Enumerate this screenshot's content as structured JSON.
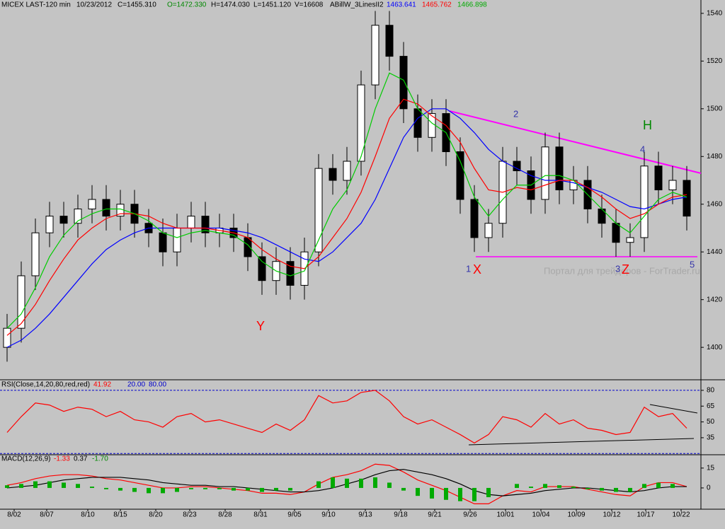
{
  "header": {
    "symbol": "MICEX LAST-120 min",
    "date": "10/23/2012",
    "close": "C=1455.310",
    "open": "O=1472.330",
    "high": "H=1474.030",
    "low": "L=1451.120",
    "volume": "V=16608",
    "indicator": "ABillW_3LinesII2",
    "line1": "1463.641",
    "line2": "1465.762",
    "line3": "1466.898"
  },
  "annotations": {
    "y": "Y",
    "p1": "1",
    "x": "X",
    "p2": "2",
    "p3": "3",
    "z": "Z",
    "p4": "4",
    "h": "H",
    "p5": "5",
    "watermark": "Портал для трейдеров - ForTrader.ru"
  },
  "chart_data": [
    {
      "type": "candlestick",
      "up_color": "#ffffff",
      "down_color": "#000000",
      "x": [
        0,
        1,
        2,
        3,
        4,
        5,
        6,
        7,
        8,
        9,
        10,
        11,
        12,
        13,
        14,
        15,
        16,
        17,
        18,
        19,
        20,
        21,
        22,
        23,
        24,
        25,
        26,
        27,
        28,
        29,
        30,
        31,
        32,
        33,
        34,
        35,
        36,
        37,
        38,
        39,
        40,
        41,
        42,
        43,
        44,
        45,
        46,
        47,
        48
      ],
      "open": [
        1400,
        1408,
        1430,
        1448,
        1455,
        1452,
        1458,
        1462,
        1455,
        1460,
        1452,
        1448,
        1440,
        1450,
        1455,
        1448,
        1450,
        1446,
        1438,
        1428,
        1436,
        1426,
        1440,
        1475,
        1470,
        1478,
        1510,
        1535,
        1522,
        1500,
        1488,
        1498,
        1482,
        1462,
        1446,
        1452,
        1478,
        1474,
        1462,
        1484,
        1466,
        1470,
        1458,
        1452,
        1444,
        1446,
        1476,
        1466,
        1470
      ],
      "high": [
        1414,
        1436,
        1454,
        1461,
        1461,
        1464,
        1468,
        1468,
        1466,
        1466,
        1458,
        1454,
        1456,
        1461,
        1461,
        1456,
        1456,
        1452,
        1444,
        1442,
        1442,
        1446,
        1481,
        1481,
        1484,
        1516,
        1541,
        1541,
        1528,
        1506,
        1504,
        1504,
        1488,
        1468,
        1458,
        1484,
        1484,
        1480,
        1490,
        1490,
        1476,
        1476,
        1464,
        1458,
        1452,
        1482,
        1482,
        1476,
        1476
      ],
      "low": [
        1394,
        1402,
        1424,
        1442,
        1446,
        1446,
        1452,
        1449,
        1449,
        1446,
        1442,
        1434,
        1434,
        1444,
        1442,
        1442,
        1440,
        1432,
        1422,
        1422,
        1420,
        1420,
        1434,
        1464,
        1464,
        1472,
        1504,
        1516,
        1494,
        1482,
        1482,
        1476,
        1456,
        1440,
        1440,
        1446,
        1468,
        1456,
        1456,
        1460,
        1460,
        1452,
        1446,
        1438,
        1438,
        1440,
        1460,
        1460,
        1449
      ],
      "close": [
        1408,
        1430,
        1448,
        1455,
        1452,
        1458,
        1462,
        1455,
        1460,
        1452,
        1448,
        1440,
        1450,
        1455,
        1448,
        1450,
        1446,
        1438,
        1428,
        1436,
        1426,
        1440,
        1475,
        1470,
        1478,
        1510,
        1535,
        1522,
        1500,
        1488,
        1498,
        1482,
        1462,
        1446,
        1452,
        1478,
        1474,
        1462,
        1484,
        1466,
        1470,
        1458,
        1452,
        1444,
        1446,
        1476,
        1466,
        1470,
        1455
      ],
      "series": [
        {
          "color": "#0000ff",
          "values": [
            1400,
            1403,
            1408,
            1414,
            1421,
            1428,
            1435,
            1441,
            1445,
            1448,
            1450,
            1450,
            1450,
            1450,
            1450,
            1450,
            1449,
            1448,
            1446,
            1443,
            1440,
            1437,
            1436,
            1440,
            1446,
            1452,
            1462,
            1475,
            1488,
            1496,
            1500,
            1500,
            1496,
            1490,
            1483,
            1478,
            1475,
            1472,
            1470,
            1470,
            1469,
            1467,
            1465,
            1462,
            1459,
            1458,
            1460,
            1462,
            1463
          ]
        },
        {
          "color": "#ff0000",
          "values": [
            1405,
            1410,
            1418,
            1428,
            1437,
            1445,
            1450,
            1454,
            1456,
            1456,
            1455,
            1452,
            1450,
            1450,
            1450,
            1449,
            1448,
            1446,
            1441,
            1437,
            1434,
            1433,
            1438,
            1446,
            1454,
            1465,
            1480,
            1496,
            1504,
            1502,
            1497,
            1493,
            1486,
            1475,
            1466,
            1465,
            1467,
            1466,
            1468,
            1470,
            1470,
            1467,
            1463,
            1458,
            1454,
            1456,
            1460,
            1463,
            1464
          ]
        },
        {
          "color": "#00cc00",
          "values": [
            1408,
            1414,
            1425,
            1438,
            1447,
            1453,
            1456,
            1458,
            1458,
            1456,
            1453,
            1448,
            1446,
            1448,
            1449,
            1448,
            1447,
            1443,
            1436,
            1432,
            1430,
            1432,
            1445,
            1458,
            1466,
            1480,
            1500,
            1515,
            1512,
            1500,
            1494,
            1490,
            1478,
            1463,
            1455,
            1462,
            1468,
            1468,
            1472,
            1472,
            1470,
            1464,
            1458,
            1452,
            1448,
            1455,
            1462,
            1465,
            1463
          ]
        }
      ],
      "xlim": [
        -0.5,
        49
      ],
      "ylim": [
        1387,
        1545
      ],
      "yticks": [
        1400,
        1420,
        1440,
        1460,
        1480,
        1500,
        1520,
        1540
      ]
    },
    {
      "type": "line",
      "title": "RSI(Close,14,20,80,red,red)",
      "last": "41.92",
      "levels": [
        {
          "value": 20,
          "label": "20.00"
        },
        {
          "value": 80,
          "label": "80.00"
        }
      ],
      "level_color": "#0000cc",
      "x": [
        0,
        1,
        2,
        3,
        4,
        5,
        6,
        7,
        8,
        9,
        10,
        11,
        12,
        13,
        14,
        15,
        16,
        17,
        18,
        19,
        20,
        21,
        22,
        23,
        24,
        25,
        26,
        27,
        28,
        29,
        30,
        31,
        32,
        33,
        34,
        35,
        36,
        37,
        38,
        39,
        40,
        41,
        42,
        43,
        44,
        45,
        46,
        47,
        48
      ],
      "series": [
        {
          "color": "#ff0000",
          "values": [
            40,
            55,
            68,
            66,
            60,
            64,
            62,
            55,
            60,
            52,
            50,
            45,
            55,
            58,
            50,
            52,
            48,
            44,
            40,
            48,
            42,
            52,
            75,
            68,
            70,
            78,
            80,
            70,
            55,
            48,
            52,
            45,
            38,
            30,
            38,
            55,
            52,
            45,
            58,
            48,
            52,
            44,
            42,
            38,
            40,
            64,
            55,
            58,
            44
          ]
        }
      ],
      "xlim": [
        -0.5,
        49
      ],
      "ylim": [
        19.5,
        88
      ],
      "yticks": [
        35,
        50,
        65,
        80
      ]
    },
    {
      "type": "line",
      "title": "MACD(12,26,9)",
      "labels": [
        "-1.33",
        "0.37",
        "-1.70"
      ],
      "x": [
        0,
        1,
        2,
        3,
        4,
        5,
        6,
        7,
        8,
        9,
        10,
        11,
        12,
        13,
        14,
        15,
        16,
        17,
        18,
        19,
        20,
        21,
        22,
        23,
        24,
        25,
        26,
        27,
        28,
        29,
        30,
        31,
        32,
        33,
        34,
        35,
        36,
        37,
        38,
        39,
        40,
        41,
        42,
        43,
        44,
        45,
        46,
        47,
        48
      ],
      "series": [
        {
          "color": "#ff0000",
          "values": [
            2,
            4,
            7,
            9,
            10,
            10,
            9,
            7,
            6,
            4,
            2,
            0,
            0,
            1,
            1,
            0,
            -1,
            -2,
            -4,
            -4,
            -5,
            -3,
            3,
            8,
            10,
            13,
            18,
            17,
            12,
            6,
            2,
            -2,
            -7,
            -12,
            -12,
            -6,
            -2,
            -3,
            1,
            1,
            1,
            -1,
            -3,
            -5,
            -6,
            1,
            4,
            4,
            1
          ]
        },
        {
          "color": "#000000",
          "values": [
            0,
            1,
            2,
            4,
            6,
            7,
            8,
            8,
            8,
            7,
            6,
            4,
            3,
            2,
            2,
            1,
            1,
            0,
            -1,
            -2,
            -3,
            -3,
            -2,
            0,
            3,
            6,
            10,
            13,
            14,
            12,
            10,
            7,
            3,
            -2,
            -5,
            -6,
            -5,
            -4,
            -2,
            -1,
            0,
            0,
            -1,
            -2,
            -3,
            -2,
            0,
            1,
            1
          ]
        },
        {
          "color": "#00aa00",
          "style": "histogram",
          "values": [
            2,
            3,
            5,
            5,
            4,
            3,
            1,
            -1,
            -2,
            -3,
            -4,
            -4,
            -3,
            -1,
            -1,
            -1,
            -2,
            -2,
            -3,
            -2,
            -2,
            0,
            5,
            8,
            7,
            7,
            8,
            4,
            -2,
            -6,
            -8,
            -9,
            -10,
            -10,
            -7,
            0,
            3,
            1,
            3,
            2,
            1,
            -1,
            -2,
            -3,
            -3,
            3,
            4,
            3,
            0
          ]
        }
      ],
      "xlim": [
        -0.5,
        49
      ],
      "ylim": [
        -15,
        24
      ],
      "yticks": [
        0,
        15
      ],
      "xticks": [
        {
          "value": 0.5,
          "label": "8/02"
        },
        {
          "value": 2.8,
          "label": "8/07"
        },
        {
          "value": 5.7,
          "label": "8/10"
        },
        {
          "value": 8.0,
          "label": "8/15"
        },
        {
          "value": 10.5,
          "label": "8/20"
        },
        {
          "value": 12.9,
          "label": "8/23"
        },
        {
          "value": 15.4,
          "label": "8/28"
        },
        {
          "value": 17.9,
          "label": "8/31"
        },
        {
          "value": 20.3,
          "label": "9/05"
        },
        {
          "value": 22.7,
          "label": "9/10"
        },
        {
          "value": 25.3,
          "label": "9/13"
        },
        {
          "value": 27.8,
          "label": "9/18"
        },
        {
          "value": 30.2,
          "label": "9/21"
        },
        {
          "value": 32.7,
          "label": "9/26"
        },
        {
          "value": 35.2,
          "label": "10/01"
        },
        {
          "value": 37.7,
          "label": "10/04"
        },
        {
          "value": 40.2,
          "label": "10/09"
        },
        {
          "value": 42.7,
          "label": "10/12"
        },
        {
          "value": 45.1,
          "label": "10/17"
        },
        {
          "value": 47.6,
          "label": "10/22"
        }
      ]
    }
  ]
}
